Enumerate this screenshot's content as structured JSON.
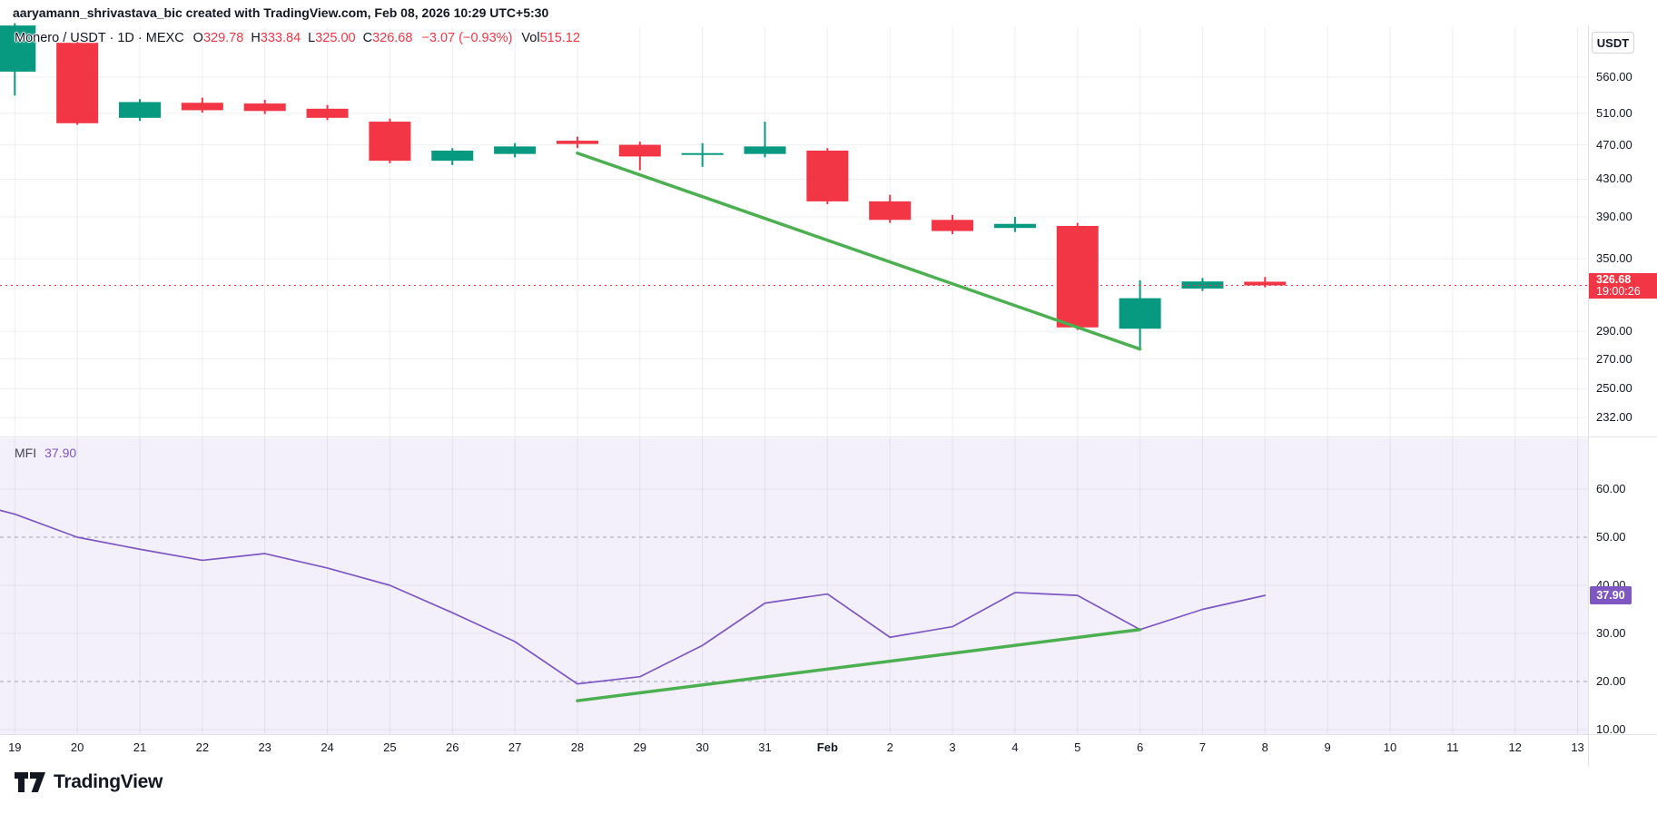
{
  "attribution": "aaryamann_shrivastava_bic created with TradingView.com, Feb 08, 2026 10:29 UTC+5:30",
  "header": {
    "symbol": "Monero / USDT · 1D · MEXC",
    "ohlc": [
      {
        "label": "O",
        "value": "329.78"
      },
      {
        "label": "H",
        "value": "333.84"
      },
      {
        "label": "L",
        "value": "325.00"
      },
      {
        "label": "C",
        "value": "326.68"
      }
    ],
    "change": "−3.07 (−0.93%)",
    "volume_label": "Vol",
    "volume_value": "515.12"
  },
  "currency_button": "USDT",
  "price_axis": {
    "labels": [
      "560.00",
      "510.00",
      "470.00",
      "430.00",
      "390.00",
      "350.00",
      "290.00",
      "270.00",
      "250.00",
      "232.00"
    ],
    "last_price_label": "326.68",
    "countdown": "19:00:26"
  },
  "mfi_panel": {
    "indicator_label": "MFI",
    "indicator_value": "37.90",
    "axis_labels": [
      "60.00",
      "50.00",
      "40.00",
      "30.00",
      "20.00",
      "10.00"
    ],
    "badge": "37.90"
  },
  "time_axis": {
    "labels": [
      "19",
      "20",
      "21",
      "22",
      "23",
      "24",
      "25",
      "26",
      "27",
      "28",
      "29",
      "30",
      "31",
      "Feb",
      "2",
      "3",
      "4",
      "5",
      "6",
      "7",
      "8",
      "9",
      "10",
      "11",
      "12",
      "13"
    ],
    "bold_label": "Feb"
  },
  "logo": {
    "text": "TradingView"
  },
  "colors": {
    "up": "#089981",
    "down": "#f23645",
    "trend": "#4caf50",
    "mfi_line": "#7e57c2",
    "mfi_bg": "#f3effb",
    "grid": "rgba(42,46,57,0.07)",
    "grid_v": "rgba(42,46,57,0.08)",
    "grid_mfi": "rgba(42,46,57,0.06)",
    "band": "#a3a0b4",
    "border": "#e0e3eb",
    "text": "#131722",
    "muted": "#787b86"
  },
  "chart_data": [
    {
      "type": "candlestick",
      "title": "Monero / USDT · 1D · MEXC",
      "timeframe": "1D",
      "scale": "log",
      "x": [
        "Jan 19",
        "Jan 20",
        "Jan 21",
        "Jan 22",
        "Jan 23",
        "Jan 24",
        "Jan 25",
        "Jan 26",
        "Jan 27",
        "Jan 28",
        "Jan 29",
        "Jan 30",
        "Jan 31",
        "Feb 1",
        "Feb 2",
        "Feb 3",
        "Feb 4",
        "Feb 5",
        "Feb 6",
        "Feb 7",
        "Feb 8"
      ],
      "ohlc": [
        [
          568,
          644,
          534,
          640
        ],
        [
          612,
          620,
          495,
          497
        ],
        [
          504,
          529,
          500,
          525
        ],
        [
          524,
          531,
          511,
          514
        ],
        [
          523,
          528,
          509,
          513
        ],
        [
          516,
          521,
          501,
          504
        ],
        [
          499,
          503,
          448,
          451
        ],
        [
          451,
          466,
          446,
          463
        ],
        [
          459,
          472,
          455,
          468
        ],
        [
          475,
          480,
          466,
          471
        ],
        [
          470,
          474,
          440,
          456
        ],
        [
          458,
          472,
          444,
          460
        ],
        [
          459,
          499,
          455,
          468
        ],
        [
          463,
          466,
          403,
          406
        ],
        [
          406,
          413,
          384,
          387
        ],
        [
          387,
          392,
          373,
          376
        ],
        [
          379,
          390,
          375,
          383
        ],
        [
          381,
          384,
          291,
          293
        ],
        [
          292,
          331,
          278,
          316
        ],
        [
          324,
          333,
          322,
          330
        ],
        [
          329.78,
          333.84,
          325.0,
          326.68
        ]
      ],
      "last_price": 326.68,
      "y_axis_ticks": [
        560,
        510,
        470,
        430,
        390,
        350,
        290,
        270,
        250,
        232
      ],
      "ylim": [
        225,
        650
      ],
      "trendline": {
        "from": {
          "x": "Jan 28",
          "i": 9,
          "price": 460
        },
        "to": {
          "x": "Feb 6",
          "i": 18,
          "price": 277
        },
        "color": "#4caf50"
      }
    },
    {
      "type": "line",
      "title": "MFI (Money Flow Index)",
      "x": [
        "Jan 19",
        "Jan 20",
        "Jan 21",
        "Jan 22",
        "Jan 23",
        "Jan 24",
        "Jan 25",
        "Jan 26",
        "Jan 27",
        "Jan 28",
        "Jan 29",
        "Jan 30",
        "Jan 31",
        "Feb 1",
        "Feb 2",
        "Feb 3",
        "Feb 4",
        "Feb 5",
        "Feb 6",
        "Feb 7",
        "Feb 8"
      ],
      "values": [
        54.8,
        50.0,
        47.5,
        45.2,
        46.6,
        43.6,
        40.0,
        34.3,
        28.3,
        19.5,
        21.0,
        27.5,
        36.3,
        38.2,
        29.2,
        31.4,
        38.5,
        37.9,
        30.8,
        35.0,
        37.9
      ],
      "edge_value": 55.6,
      "last_value": 37.9,
      "bands": [
        50,
        20
      ],
      "y_axis_ticks": [
        60,
        50,
        40,
        30,
        20,
        10
      ],
      "ylim": [
        8,
        66
      ],
      "trendline": {
        "from": {
          "x": "Jan 28",
          "i": 9,
          "value": 16
        },
        "to": {
          "x": "Feb 6",
          "i": 18,
          "value": 30.8
        },
        "color": "#4caf50"
      }
    }
  ]
}
